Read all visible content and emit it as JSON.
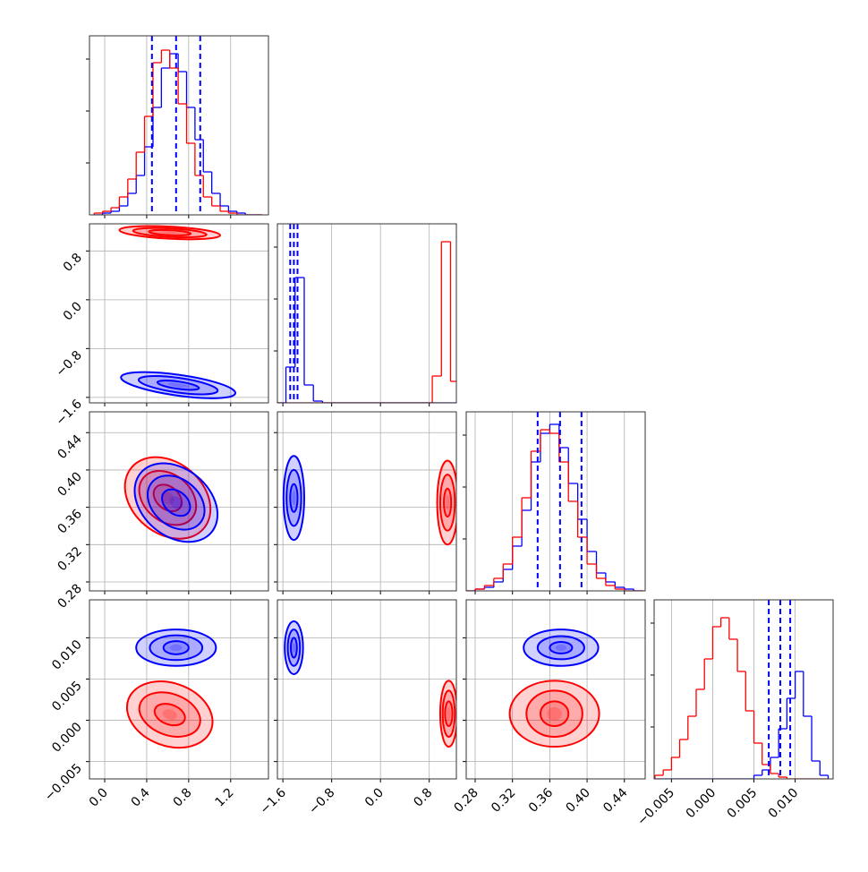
{
  "chart_data": {
    "type": "corner",
    "axes": [
      {
        "lim": [
          -0.145,
          1.56
        ],
        "ticks": [
          {
            "value": 0.0,
            "label": "0.0"
          },
          {
            "value": 0.4,
            "label": "0.4"
          },
          {
            "value": 0.8,
            "label": "0.8"
          },
          {
            "value": 1.2,
            "label": "1.2"
          }
        ]
      },
      {
        "lim": [
          -1.69,
          1.245
        ],
        "ticks": [
          {
            "value": -1.6,
            "label": "−1.6"
          },
          {
            "value": -0.8,
            "label": "−0.8"
          },
          {
            "value": 0.0,
            "label": "0.0"
          },
          {
            "value": 0.8,
            "label": "0.8"
          }
        ]
      },
      {
        "lim": [
          0.2704,
          0.4623
        ],
        "ticks": [
          {
            "value": 0.28,
            "label": "0.28"
          },
          {
            "value": 0.32,
            "label": "0.32"
          },
          {
            "value": 0.36,
            "label": "0.36"
          },
          {
            "value": 0.4,
            "label": "0.40"
          },
          {
            "value": 0.44,
            "label": "0.44"
          }
        ]
      },
      {
        "lim": [
          -0.0071,
          0.0146
        ],
        "ticks": [
          {
            "value": -0.005,
            "label": "−0.005"
          },
          {
            "value": 0.0,
            "label": "0.000"
          },
          {
            "value": 0.005,
            "label": "0.005"
          },
          {
            "value": 0.01,
            "label": "0.010"
          }
        ]
      }
    ],
    "histograms": [
      {
        "ylim": [
          0,
          1
        ],
        "bins": [
          -0.1,
          -0.02,
          0.06,
          0.14,
          0.22,
          0.3,
          0.38,
          0.46,
          0.54,
          0.62,
          0.7,
          0.78,
          0.86,
          0.94,
          1.02,
          1.1,
          1.18,
          1.26,
          1.34,
          1.42,
          1.5
        ],
        "quantiles": [
          0.45,
          0.68,
          0.91
        ],
        "quantile_color": "#0000ff",
        "series": [
          {
            "color": "#0000ff",
            "values": [
              0,
              0.01,
              0.02,
              0.05,
              0.12,
              0.22,
              0.38,
              0.6,
              0.82,
              0.9,
              0.8,
              0.6,
              0.42,
              0.24,
              0.12,
              0.05,
              0.02,
              0.01,
              0,
              0
            ]
          },
          {
            "color": "#ff0000",
            "values": [
              0.01,
              0.02,
              0.04,
              0.1,
              0.2,
              0.35,
              0.55,
              0.85,
              0.92,
              0.82,
              0.62,
              0.4,
              0.22,
              0.1,
              0.05,
              0.02,
              0.01,
              0,
              0,
              0
            ]
          }
        ]
      },
      {
        "ylim": [
          0,
          1
        ],
        "bins": [
          -1.7,
          -1.55,
          -1.4,
          -1.25,
          -1.1,
          -0.95,
          -0.8,
          -0.65,
          -0.5,
          -0.35,
          -0.2,
          -0.05,
          0.1,
          0.25,
          0.4,
          0.55,
          0.7,
          0.85,
          1.0,
          1.15,
          1.3
        ],
        "quantiles": [
          -1.48,
          -1.42,
          -1.36
        ],
        "quantile_color": "#0000ff",
        "series": [
          {
            "color": "#0000ff",
            "values": [
              0,
              0.2,
              0.7,
              0.1,
              0.01,
              0,
              0,
              0,
              0,
              0,
              0,
              0,
              0,
              0,
              0,
              0,
              0,
              0,
              0,
              0
            ]
          },
          {
            "color": "#ff0000",
            "values": [
              0,
              0,
              0,
              0,
              0,
              0,
              0,
              0,
              0,
              0,
              0,
              0,
              0,
              0,
              0,
              0,
              0,
              0.15,
              0.9,
              0.12
            ]
          }
        ]
      },
      {
        "ylim": [
          0,
          1
        ],
        "bins": [
          0.27,
          0.28,
          0.29,
          0.3,
          0.31,
          0.32,
          0.33,
          0.34,
          0.35,
          0.36,
          0.37,
          0.38,
          0.39,
          0.4,
          0.41,
          0.42,
          0.43,
          0.44,
          0.45,
          0.46
        ],
        "quantiles": [
          0.347,
          0.371,
          0.394
        ],
        "quantile_color": "#0000ff",
        "series": [
          {
            "color": "#0000ff",
            "values": [
              0,
              0.01,
              0.02,
              0.05,
              0.12,
              0.25,
              0.45,
              0.72,
              0.88,
              0.93,
              0.8,
              0.6,
              0.4,
              0.22,
              0.1,
              0.05,
              0.02,
              0.01,
              0
            ]
          },
          {
            "color": "#ff0000",
            "values": [
              0,
              0.01,
              0.03,
              0.07,
              0.15,
              0.3,
              0.52,
              0.78,
              0.9,
              0.88,
              0.72,
              0.5,
              0.3,
              0.15,
              0.07,
              0.03,
              0.01,
              0,
              0
            ]
          }
        ]
      },
      {
        "ylim": [
          0,
          1
        ],
        "bins": [
          -0.007,
          -0.006,
          -0.005,
          -0.004,
          -0.003,
          -0.002,
          -0.001,
          0.0,
          0.001,
          0.002,
          0.003,
          0.004,
          0.005,
          0.006,
          0.007,
          0.008,
          0.009,
          0.01,
          0.011,
          0.012,
          0.013,
          0.014
        ],
        "quantiles": [
          0.0068,
          0.0082,
          0.0094
        ],
        "quantile_color": "#0000ff",
        "series": [
          {
            "color": "#0000ff",
            "values": [
              0,
              0,
              0,
              0,
              0,
              0,
              0,
              0,
              0,
              0,
              0,
              0,
              0.02,
              0.05,
              0.12,
              0.28,
              0.45,
              0.6,
              0.35,
              0.1,
              0.02
            ]
          },
          {
            "color": "#ff0000",
            "values": [
              0.02,
              0.05,
              0.12,
              0.22,
              0.35,
              0.5,
              0.67,
              0.85,
              0.9,
              0.78,
              0.6,
              0.38,
              0.2,
              0.08,
              0.03,
              0.01,
              0,
              0,
              0,
              0,
              0
            ]
          }
        ]
      }
    ],
    "contours": [
      {
        "series": [
          {
            "color": "#ff0000",
            "center": [
              0.62,
              1.1
            ],
            "angle": 3,
            "rx": [
              0.1,
              0.2,
              0.35,
              0.48
            ],
            "ry": [
              0.02,
              0.04,
              0.07,
              0.1
            ]
          },
          {
            "color": "#0000ff",
            "center": [
              0.7,
              -1.4
            ],
            "angle": 8,
            "rx": [
              0.1,
              0.2,
              0.38,
              0.55
            ],
            "ry": [
              0.03,
              0.06,
              0.12,
              0.17
            ]
          }
        ]
      },
      {
        "series": [
          {
            "color": "#ff0000",
            "center": [
              0.6,
              0.37
            ],
            "angle": 40,
            "rx": [
              0.07,
              0.15,
              0.3,
              0.45
            ],
            "ry": [
              0.006,
              0.012,
              0.025,
              0.038
            ]
          },
          {
            "color": "#0000ff",
            "center": [
              0.68,
              0.365
            ],
            "angle": 40,
            "rx": [
              0.07,
              0.15,
              0.3,
              0.44
            ],
            "ry": [
              0.006,
              0.012,
              0.025,
              0.036
            ]
          }
        ]
      },
      {
        "series": [
          {
            "color": "#0000ff",
            "center": [
              -1.42,
              0.37
            ],
            "angle": 0,
            "rx": [
              0.03,
              0.06,
              0.12,
              0.17
            ],
            "ry": [
              0.008,
              0.015,
              0.03,
              0.045
            ]
          },
          {
            "color": "#ff0000",
            "center": [
              1.1,
              0.365
            ],
            "angle": 0,
            "rx": [
              0.03,
              0.06,
              0.12,
              0.17
            ],
            "ry": [
              0.008,
              0.015,
              0.03,
              0.045
            ]
          }
        ]
      },
      {
        "series": [
          {
            "color": "#0000ff",
            "center": [
              0.68,
              0.0088
            ],
            "angle": 0,
            "rx": [
              0.06,
              0.12,
              0.25,
              0.38
            ],
            "ry": [
              0.0004,
              0.0008,
              0.0015,
              0.0022
            ]
          },
          {
            "color": "#ff0000",
            "center": [
              0.62,
              0.0007
            ],
            "angle": 20,
            "rx": [
              0.07,
              0.15,
              0.3,
              0.42
            ],
            "ry": [
              0.0006,
              0.0012,
              0.0025,
              0.0038
            ]
          }
        ]
      },
      {
        "series": [
          {
            "color": "#0000ff",
            "center": [
              -1.42,
              0.0088
            ],
            "angle": 0,
            "rx": [
              0.025,
              0.05,
              0.1,
              0.15
            ],
            "ry": [
              0.0006,
              0.0012,
              0.0022,
              0.0032
            ]
          },
          {
            "color": "#ff0000",
            "center": [
              1.12,
              0.0008
            ],
            "angle": 0,
            "rx": [
              0.03,
              0.06,
              0.1,
              0.14
            ],
            "ry": [
              0.0008,
              0.0015,
              0.0028,
              0.004
            ]
          }
        ]
      },
      {
        "series": [
          {
            "color": "#0000ff",
            "center": [
              0.372,
              0.0088
            ],
            "angle": 0,
            "rx": [
              0.006,
              0.012,
              0.025,
              0.04
            ],
            "ry": [
              0.0004,
              0.0007,
              0.0014,
              0.0022
            ]
          },
          {
            "color": "#ff0000",
            "center": [
              0.365,
              0.0008
            ],
            "angle": 0,
            "rx": [
              0.008,
              0.015,
              0.03,
              0.048
            ],
            "ry": [
              0.0008,
              0.0015,
              0.0028,
              0.004
            ]
          }
        ]
      }
    ]
  }
}
